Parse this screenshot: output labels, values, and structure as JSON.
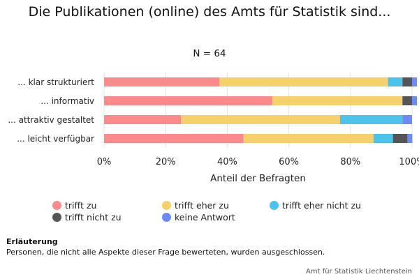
{
  "chart_data": {
    "type": "bar",
    "orientation": "horizontal",
    "stacked": true,
    "title": "Die Publikationen (online) des Amts für Statistik sind...",
    "subtitle": "N = 64",
    "xlabel": "Anteil der Befragten",
    "ylabel": "",
    "xlim": [
      0,
      100
    ],
    "x_ticks": [
      "0%",
      "20%",
      "40%",
      "60%",
      "80%",
      "100%"
    ],
    "grid": "vertical",
    "legend_position": "bottom",
    "categories": [
      "... klar strukturiert",
      "... informativ",
      "... attraktiv gestaltet",
      "... leicht verfügbar"
    ],
    "series": [
      {
        "name": "trifft zu",
        "color": "#fb8a8a",
        "values": [
          37.5,
          54.7,
          25.0,
          45.3
        ]
      },
      {
        "name": "trifft eher zu",
        "color": "#f5d06b",
        "values": [
          54.7,
          42.2,
          51.6,
          42.2
        ]
      },
      {
        "name": "trifft eher nicht zu",
        "color": "#4cc3ea",
        "values": [
          4.7,
          0.0,
          20.3,
          6.3
        ]
      },
      {
        "name": "trifft nicht zu",
        "color": "#555555",
        "values": [
          3.1,
          3.1,
          0.0,
          4.7
        ]
      },
      {
        "name": "keine Antwort",
        "color": "#6b8cf5",
        "values": [
          1.6,
          1.6,
          3.1,
          1.6
        ]
      }
    ]
  },
  "note": {
    "title": "Erläuterung",
    "text": "Personen, die nicht alle Aspekte dieser Frage bewerteten, wurden ausgeschlossen."
  },
  "source": "Amt für Statistik Liechtenstein"
}
